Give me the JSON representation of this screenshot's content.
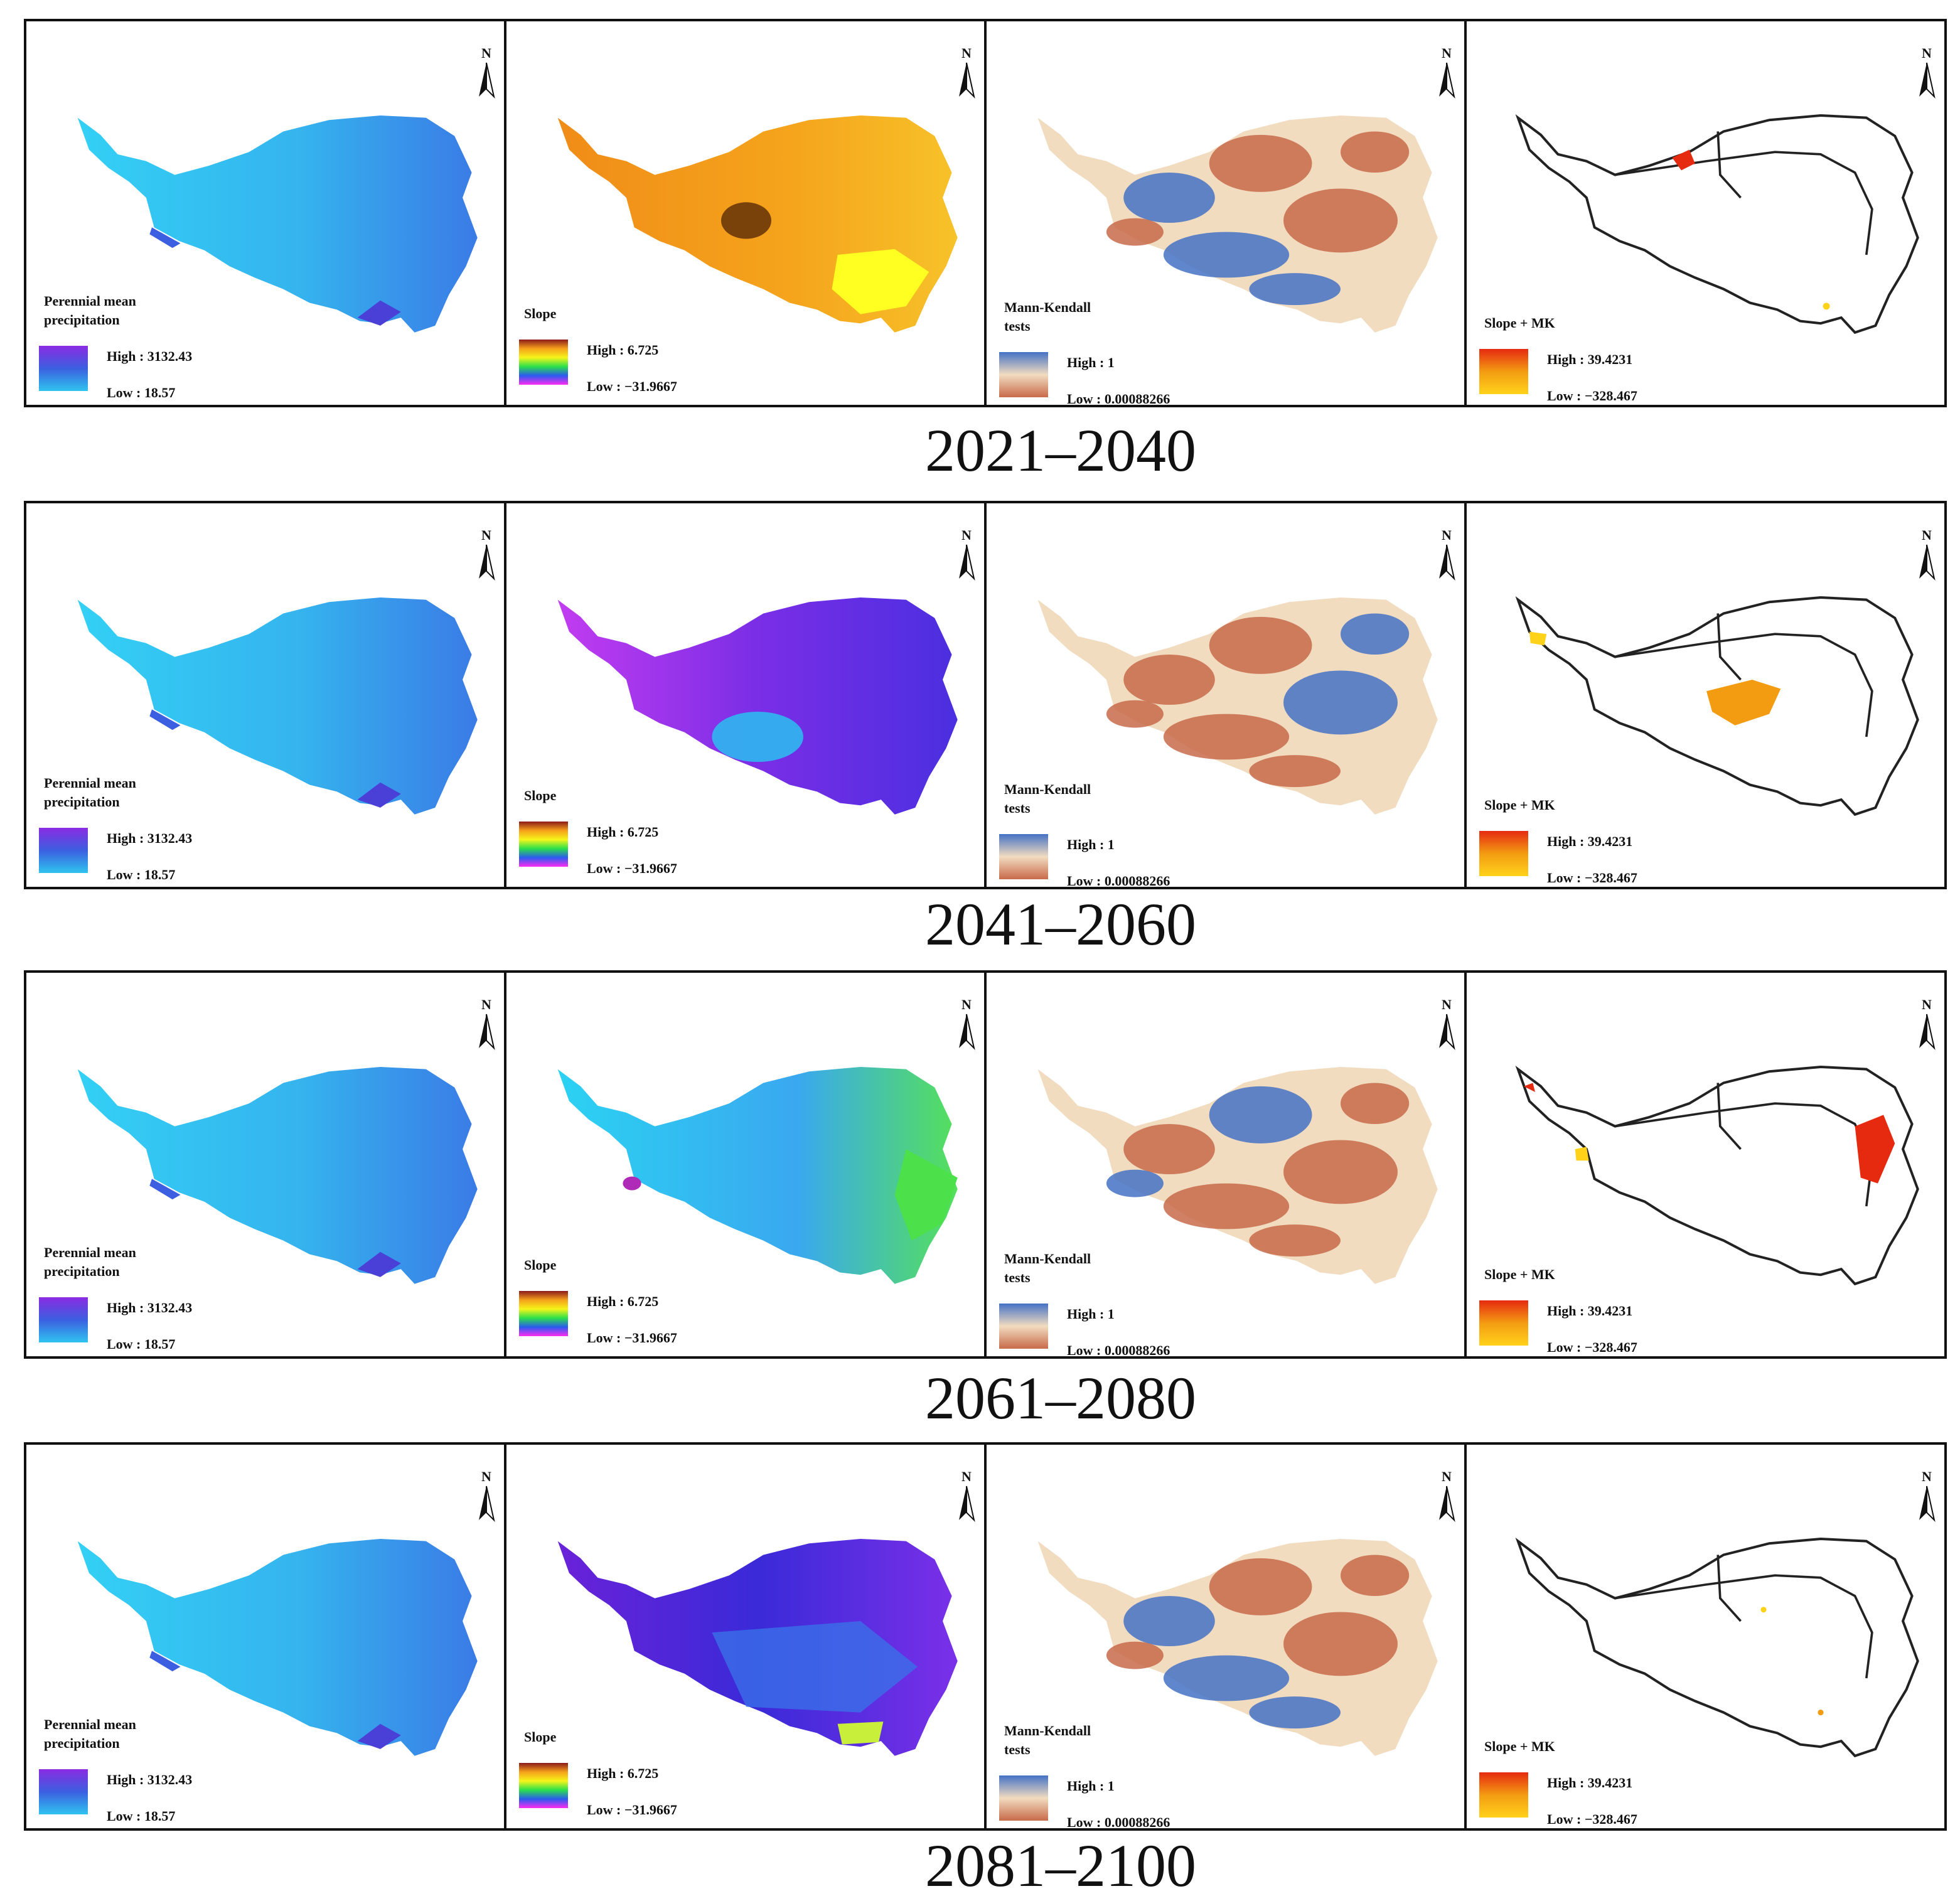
{
  "figure": {
    "rows": [
      {
        "period": "2021–2040",
        "panels": [
          {
            "type": "mean",
            "title": "Perennial mean precipitation",
            "high": "High : 3132.43",
            "low": "Low : 18.57"
          },
          {
            "type": "slope",
            "title": "Slope",
            "high": "High : 6.725",
            "low": "Low : −31.9667",
            "dominant": "orange"
          },
          {
            "type": "mk",
            "title": "Mann-Kendall tests",
            "high": "High : 1",
            "low": "Low : 0.00088266"
          },
          {
            "type": "slopemk",
            "title": "Slope + MK",
            "high": "High : 39.4231",
            "low": "Low : −328.467",
            "patches": "northcentral-small"
          }
        ]
      },
      {
        "period": "2041–2060",
        "panels": [
          {
            "type": "mean",
            "title": "Perennial mean precipitation",
            "high": "High : 3132.43",
            "low": "Low : 18.57"
          },
          {
            "type": "slope",
            "title": "Slope",
            "high": "High : 6.725",
            "low": "Low : −31.9667",
            "dominant": "purple"
          },
          {
            "type": "mk",
            "title": "Mann-Kendall tests",
            "high": "High : 1",
            "low": "Low : 0.00088266"
          },
          {
            "type": "slopemk",
            "title": "Slope + MK",
            "high": "High : 39.4231",
            "low": "Low : −328.467",
            "patches": "central-large"
          }
        ]
      },
      {
        "period": "2061–2080",
        "panels": [
          {
            "type": "mean",
            "title": "Perennial mean precipitation",
            "high": "High : 3132.43",
            "low": "Low : 18.57"
          },
          {
            "type": "slope",
            "title": "Slope",
            "high": "High : 6.725",
            "low": "Low : −31.9667",
            "dominant": "cyan"
          },
          {
            "type": "mk",
            "title": "Mann-Kendall tests",
            "high": "High : 1",
            "low": "Low : 0.00088266"
          },
          {
            "type": "slopemk",
            "title": "Slope + MK",
            "high": "High : 39.4231",
            "low": "Low : −328.467",
            "patches": "east-large"
          }
        ]
      },
      {
        "period": "2081–2100",
        "panels": [
          {
            "type": "mean",
            "title": "Perennial mean precipitation",
            "high": "High : 3132.43",
            "low": "Low : 18.57"
          },
          {
            "type": "slope",
            "title": "Slope",
            "high": "High : 6.725",
            "low": "Low : −31.9667",
            "dominant": "blue"
          },
          {
            "type": "mk",
            "title": "Mann-Kendall tests",
            "high": "High : 1",
            "low": "Low : 0.00088266"
          },
          {
            "type": "slopemk",
            "title": "Slope + MK",
            "high": "High : 39.4231",
            "low": "Low : −328.467",
            "patches": "sparse"
          }
        ]
      }
    ],
    "north_label": "N",
    "colors": {
      "frame": "#111111",
      "mean_fill": "#2fc4ef",
      "mean_deep": "#3b5fe0",
      "mean_high": "#8a2be2",
      "slope_orange": "#f29a1a",
      "slope_purple": "#8a2be2",
      "slope_cyan": "#22c7f0",
      "slope_blue": "#5a1fd8",
      "mk_blue": "#4472c4",
      "mk_red": "#c86a4a",
      "mk_cream": "#f2dcc0",
      "patch_red": "#e62a10",
      "patch_orange": "#f39c12",
      "patch_yellow": "#ffd21a"
    }
  }
}
